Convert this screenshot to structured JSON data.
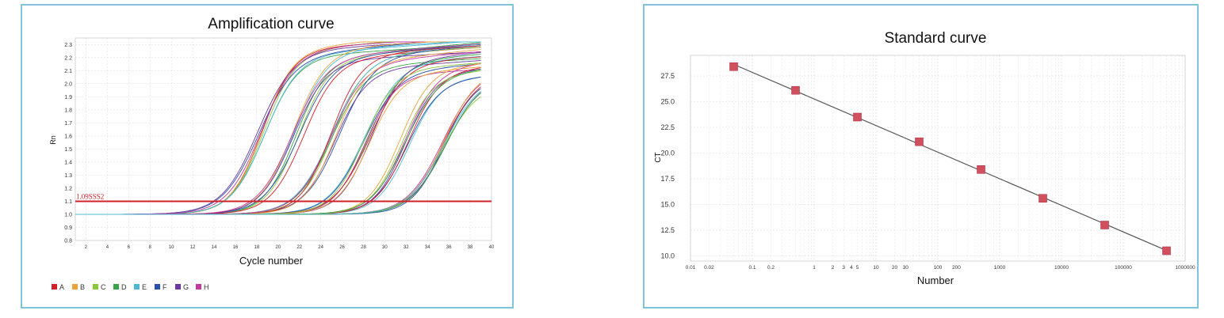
{
  "chart_data": [
    {
      "type": "line",
      "title": "Amplification curve",
      "xlabel": "Cycle number",
      "ylabel": "Rn",
      "xlim": [
        1,
        40
      ],
      "ylim": [
        0.8,
        2.35
      ],
      "x_ticks": [
        "2",
        "4",
        "6",
        "8",
        "10",
        "12",
        "14",
        "16",
        "18",
        "20",
        "22",
        "24",
        "26",
        "28",
        "30",
        "32",
        "34",
        "36",
        "38",
        "40"
      ],
      "y_ticks": [
        "0.8",
        "0.9",
        "1.0",
        "1.1",
        "1.2",
        "1.3",
        "1.4",
        "1.5",
        "1.6",
        "1.7",
        "1.8",
        "1.9",
        "2.0",
        "2.1",
        "2.2",
        "2.3"
      ],
      "grid": true,
      "threshold": {
        "value": 1.1,
        "label": "1.09SSS2",
        "color": "#d0202a"
      },
      "baseline": 1.0,
      "series": [
        {
          "name": "A",
          "color": "#d0202a"
        },
        {
          "name": "B",
          "color": "#e8a33a"
        },
        {
          "name": "C",
          "color": "#8cc63f"
        },
        {
          "name": "D",
          "color": "#3aa34a"
        },
        {
          "name": "E",
          "color": "#4fb8d0"
        },
        {
          "name": "F",
          "color": "#2a4fa8"
        },
        {
          "name": "G",
          "color": "#6a3aa0"
        },
        {
          "name": "H",
          "color": "#c23a9a"
        }
      ],
      "curve_groups": [
        {
          "ct": 16.3,
          "plateau": 2.25,
          "count": 8
        },
        {
          "ct": 19.6,
          "plateau": 2.2,
          "count": 8
        },
        {
          "ct": 23.0,
          "plateau": 2.16,
          "count": 8
        },
        {
          "ct": 26.3,
          "plateau": 2.12,
          "count": 8
        },
        {
          "ct": 29.7,
          "plateau": 2.08,
          "count": 8
        },
        {
          "ct": 33.2,
          "plateau": 2.03,
          "count": 8
        }
      ]
    },
    {
      "type": "scatter",
      "title": "Standard curve",
      "xlabel": "Number",
      "ylabel": "CT",
      "x_scale": "log",
      "xlim": [
        0.01,
        1000000
      ],
      "ylim": [
        9.5,
        29.5
      ],
      "grid": true,
      "x_ticks": [
        {
          "v": 0.01,
          "t": "0.01"
        },
        {
          "v": 0.02,
          "t": "0.02"
        },
        {
          "v": 0.1,
          "t": "0.1"
        },
        {
          "v": 0.2,
          "t": "0.2"
        },
        {
          "v": 1,
          "t": "1"
        },
        {
          "v": 2,
          "t": "2"
        },
        {
          "v": 3,
          "t": "3"
        },
        {
          "v": 4,
          "t": "4"
        },
        {
          "v": 5,
          "t": "5"
        },
        {
          "v": 10,
          "t": "10"
        },
        {
          "v": 20,
          "t": "20"
        },
        {
          "v": 30,
          "t": "30"
        },
        {
          "v": 100,
          "t": "100"
        },
        {
          "v": 200,
          "t": "200"
        },
        {
          "v": 1000,
          "t": "1000"
        },
        {
          "v": 10000,
          "t": "10000"
        },
        {
          "v": 100000,
          "t": "100000"
        },
        {
          "v": 1000000,
          "t": "1000000"
        }
      ],
      "y_ticks": [
        "10.0",
        "12.5",
        "15.0",
        "17.5",
        "20.0",
        "22.5",
        "25.0",
        "27.5"
      ],
      "points": [
        {
          "x": 0.05,
          "y": 28.4
        },
        {
          "x": 0.5,
          "y": 26.1
        },
        {
          "x": 5,
          "y": 23.5
        },
        {
          "x": 50,
          "y": 21.1
        },
        {
          "x": 500,
          "y": 18.4
        },
        {
          "x": 5000,
          "y": 15.6
        },
        {
          "x": 50000,
          "y": 13.0
        },
        {
          "x": 500000,
          "y": 10.5
        }
      ],
      "marker_color": "#d05060",
      "line_color": "#555555"
    }
  ]
}
